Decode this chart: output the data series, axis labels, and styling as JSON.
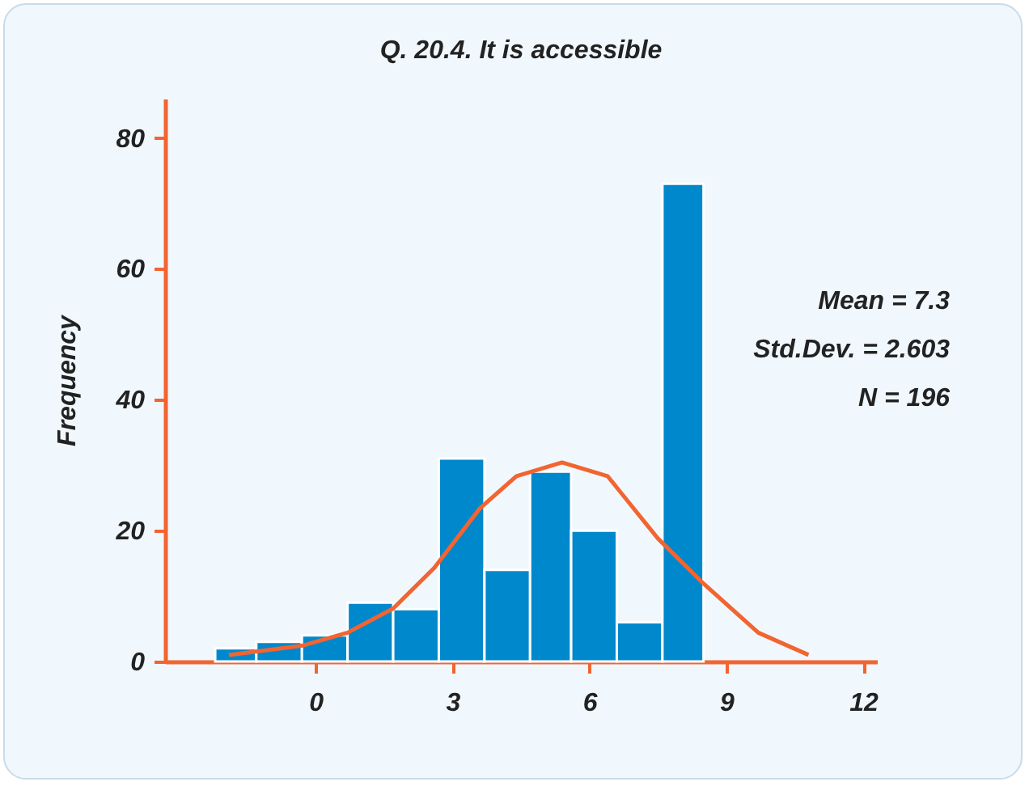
{
  "chart_data": {
    "type": "histogram",
    "title": "Q. 20.4. It is accessible",
    "ylabel": "Frequency",
    "bins": [
      -2.2,
      -1.3,
      -0.3,
      0.7,
      1.7,
      2.7,
      3.7,
      4.7,
      5.6,
      6.6,
      7.6,
      8.5
    ],
    "values": [
      2,
      3,
      4,
      9,
      8,
      31,
      14,
      29,
      20,
      6,
      73
    ],
    "color": "#0088cc",
    "series": [
      {
        "type": "line",
        "color": "#f26430",
        "x": [
          -1.9,
          -0.3,
          0.7,
          1.7,
          2.6,
          3.6,
          4.4,
          5.4,
          6.4,
          7.5,
          8.5,
          9.7,
          10.8
        ],
        "values": [
          1,
          2.4,
          4.4,
          8.1,
          14.3,
          23.4,
          28.3,
          30.4,
          28.3,
          18.8,
          11.9,
          4.4,
          1
        ]
      }
    ],
    "xlim": [
      -3.3,
      12.3
    ],
    "xticks": [
      0,
      3,
      6,
      9,
      12
    ],
    "ylim": [
      0,
      86
    ],
    "yticks": [
      0,
      20,
      40,
      60,
      80
    ],
    "grid": false,
    "annotations": [
      "Mean = 7.3",
      "Std.Dev. = 2.603",
      "N = 196"
    ]
  }
}
